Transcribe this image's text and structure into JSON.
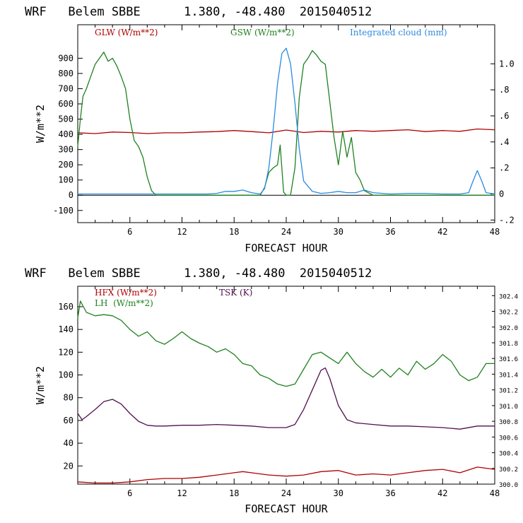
{
  "chart_data": [
    {
      "type": "line",
      "title": "WRF   Belem SBBE      1.380, -48.480  2015040512",
      "xlabel": "FORECAST HOUR",
      "ylabel": "W/m**2",
      "xlim": [
        0,
        48
      ],
      "ylim": [
        -180,
        1120
      ],
      "y2lim": [
        -0.22,
        1.3
      ],
      "xticks": [
        "6",
        "12",
        "18",
        "24",
        "30",
        "36",
        "42",
        "48"
      ],
      "yticks": [
        "-100",
        "0",
        "100",
        "200",
        "300",
        "400",
        "500",
        "600",
        "700",
        "800",
        "900"
      ],
      "y2ticks": [
        "-.2",
        "0",
        ".2",
        ".4",
        ".6",
        ".8",
        "1.0"
      ],
      "legend": [
        "GLW (W/m**2)",
        "GSW (W/m**2)",
        "Integrated cloud (mm)"
      ],
      "series": [
        {
          "name": "GLW (W/m**2)",
          "axis": "left",
          "color": "#b00000",
          "x": [
            0,
            2,
            4,
            6,
            8,
            10,
            12,
            14,
            16,
            18,
            20,
            22,
            24,
            26,
            28,
            30,
            32,
            34,
            36,
            38,
            40,
            42,
            44,
            46,
            48
          ],
          "values": [
            410,
            405,
            415,
            412,
            405,
            410,
            410,
            415,
            418,
            425,
            418,
            410,
            428,
            412,
            420,
            415,
            425,
            420,
            425,
            430,
            418,
            425,
            420,
            435,
            430
          ]
        },
        {
          "name": "GSW (W/m**2)",
          "axis": "left",
          "color": "#208020",
          "x": [
            0,
            0.3,
            0.6,
            1,
            1.5,
            2,
            2.5,
            3,
            3.5,
            4,
            4.5,
            5,
            5.5,
            6,
            6.5,
            7,
            7.5,
            8,
            8.5,
            9,
            9.5,
            10,
            21,
            21.5,
            22,
            22.5,
            23,
            23.3,
            23.7,
            24,
            24.5,
            25,
            25.5,
            26,
            26.5,
            27,
            27.5,
            28,
            28.5,
            29,
            29.5,
            30,
            30.5,
            31,
            31.5,
            32,
            32.5,
            33,
            34,
            48
          ],
          "values": [
            320,
            500,
            650,
            700,
            780,
            860,
            900,
            940,
            880,
            900,
            850,
            780,
            700,
            500,
            360,
            320,
            250,
            120,
            30,
            0,
            0,
            0,
            0,
            50,
            150,
            180,
            200,
            330,
            20,
            0,
            0,
            180,
            640,
            860,
            900,
            950,
            920,
            880,
            860,
            620,
            380,
            200,
            420,
            250,
            380,
            150,
            100,
            30,
            0,
            0
          ]
        },
        {
          "name": "Integrated cloud (mm)",
          "axis": "right",
          "color": "#2a8ae0",
          "x": [
            0,
            15,
            16,
            17,
            18,
            19,
            20,
            21,
            21.5,
            22,
            22.5,
            23,
            23.5,
            24,
            24.5,
            25,
            25.5,
            26,
            27,
            28,
            29,
            30,
            31,
            32,
            33,
            34,
            36,
            38,
            40,
            42,
            44,
            45,
            45.5,
            46,
            46.5,
            47,
            48
          ],
          "values": [
            0,
            0,
            0.005,
            0.02,
            0.02,
            0.03,
            0.01,
            0,
            0.04,
            0.2,
            0.5,
            0.85,
            1.08,
            1.12,
            1.0,
            0.7,
            0.35,
            0.1,
            0.02,
            0.005,
            0.01,
            0.02,
            0.01,
            0.01,
            0.03,
            0.01,
            0,
            0.005,
            0.005,
            0,
            0,
            0.01,
            0.1,
            0.18,
            0.1,
            0.01,
            0
          ]
        }
      ]
    },
    {
      "type": "line",
      "title": "WRF   Belem SBBE      1.380, -48.480  2015040512",
      "xlabel": "FORECAST HOUR",
      "ylabel": "W/m**2",
      "xlim": [
        0,
        48
      ],
      "ylim": [
        4,
        178
      ],
      "y2lim": [
        300.0,
        302.52
      ],
      "xticks": [
        "6",
        "12",
        "18",
        "24",
        "30",
        "36",
        "42",
        "48"
      ],
      "yticks": [
        "20",
        "40",
        "60",
        "80",
        "100",
        "120",
        "140",
        "160"
      ],
      "y2ticks": [
        "300.0",
        "300.2",
        "300.4",
        "300.6",
        "300.8",
        "301.0",
        "301.2",
        "301.4",
        "301.6",
        "301.8",
        "302.0",
        "302.2",
        "302.4"
      ],
      "legend": [
        "HFX (W/m**2)",
        "LH  (W/m**2)",
        "TSK (K)"
      ],
      "series": [
        {
          "name": "HFX (W/m**2)",
          "axis": "left",
          "color": "#b00000",
          "x": [
            0,
            2,
            4,
            6,
            8,
            10,
            12,
            14,
            16,
            18,
            19,
            20,
            22,
            24,
            26,
            28,
            30,
            32,
            34,
            36,
            38,
            40,
            42,
            44,
            46,
            48
          ],
          "values": [
            6,
            5,
            5,
            6,
            8,
            9,
            9,
            10,
            12,
            14,
            15,
            14,
            12,
            11,
            12,
            15,
            16,
            12,
            13,
            12,
            14,
            16,
            17,
            14,
            19,
            17
          ]
        },
        {
          "name": "LH  (W/m**2)",
          "axis": "left",
          "color": "#208020",
          "x": [
            0,
            0.3,
            1,
            2,
            3,
            4,
            5,
            6,
            7,
            8,
            9,
            10,
            11,
            12,
            13,
            14,
            15,
            16,
            17,
            18,
            19,
            20,
            21,
            22,
            23,
            24,
            25,
            26,
            27,
            28,
            29,
            30,
            31,
            32,
            33,
            34,
            35,
            36,
            37,
            38,
            39,
            40,
            41,
            42,
            43,
            44,
            45,
            46,
            47,
            48
          ],
          "values": [
            150,
            165,
            155,
            152,
            153,
            152,
            148,
            140,
            134,
            138,
            130,
            127,
            132,
            138,
            132,
            128,
            125,
            120,
            123,
            118,
            110,
            108,
            100,
            97,
            92,
            90,
            92,
            105,
            118,
            120,
            115,
            110,
            120,
            110,
            103,
            98,
            105,
            98,
            106,
            100,
            112,
            105,
            110,
            118,
            112,
            100,
            95,
            98,
            110,
            110
          ]
        },
        {
          "name": "TSK (K)",
          "axis": "right",
          "color": "#501050",
          "x": [
            0,
            0.5,
            1,
            2,
            3,
            4,
            5,
            6,
            7,
            8,
            9,
            10,
            12,
            14,
            16,
            18,
            20,
            22,
            24,
            25,
            26,
            27,
            28,
            28.5,
            29,
            30,
            31,
            32,
            34,
            36,
            38,
            40,
            42,
            44,
            46,
            48
          ],
          "values": [
            300.9,
            300.82,
            300.86,
            300.95,
            301.05,
            301.08,
            301.02,
            300.9,
            300.8,
            300.75,
            300.74,
            300.74,
            300.75,
            300.75,
            300.76,
            300.75,
            300.74,
            300.72,
            300.72,
            300.76,
            300.95,
            301.2,
            301.45,
            301.48,
            301.35,
            301.0,
            300.82,
            300.78,
            300.76,
            300.74,
            300.74,
            300.73,
            300.72,
            300.7,
            300.74,
            300.74
          ]
        }
      ]
    }
  ]
}
